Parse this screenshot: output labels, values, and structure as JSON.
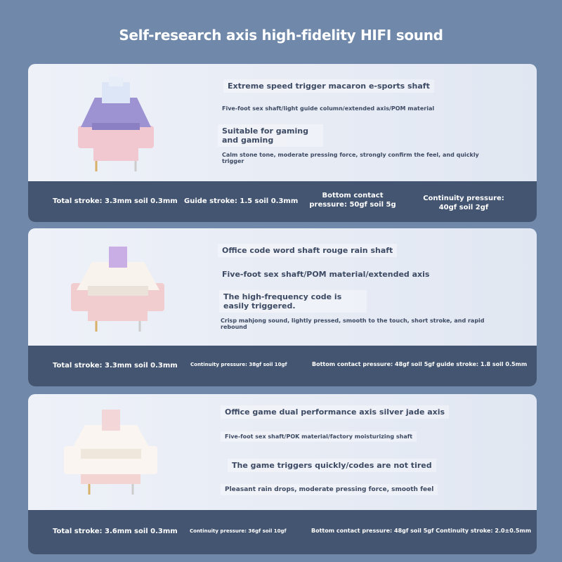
{
  "title": "Self-research axis high-fidelity HIFI sound",
  "cards": [
    {
      "name": "Extreme speed trigger macaron e-sports shaft",
      "sub": "Five-foot sex shaft/light guide column/extended axis/POM material",
      "feature": "Suitable for gaming and gaming",
      "desc": "Calm stone tone, moderate pressing force, strongly confirm the feel, and quickly trigger",
      "specs": [
        "Total stroke: 3.3mm soil 0.3mm",
        "Guide stroke: 1.5 soil 0.3mm",
        "Bottom contact pressure: 50gf soil 5g",
        "Continuity pressure: 40gf soil 2gf"
      ],
      "colors": {
        "stem": "#dce6f6",
        "housing_top": "#9d92d2",
        "housing_bottom": "#f1c8d0"
      }
    },
    {
      "name": "Office code word shaft rouge rain shaft",
      "sub": "Five-foot sex shaft/POM material/extended axis",
      "feature": "The high-frequency code is easily triggered.",
      "desc": "Crisp mahjong sound, lightly pressed, smooth to the touch, short stroke, and rapid rebound",
      "specs": [
        "Total stroke: 3.3mm soil 0.3mm",
        "Continuity pressure: 38gf soil 10gf",
        "Bottom contact pressure: 48gf soil 5gf guide stroke: 1.8 soil 0.5mm"
      ],
      "colors": {
        "stem": "#c9aee6",
        "housing_top": "#f8f3ec",
        "housing_bottom": "#f2cdd0"
      }
    },
    {
      "name": "Office game dual performance axis silver jade axis",
      "sub": "Five-foot sex shaft/POK material/factory moisturizing shaft",
      "feature": "The game triggers quickly/codes are not tired",
      "desc": "Pleasant rain drops, moderate pressing force, smooth feel",
      "specs": [
        "Total stroke: 3.6mm soil 0.3mm",
        "Continuity pressure: 36gf soil 10gf",
        "Bottom contact pressure: 48gf soil 5gf Continuity stroke: 2.0±0.5mm"
      ],
      "colors": {
        "stem": "#f3d7d8",
        "housing_top": "#faf5f0",
        "housing_bottom": "#f4d3d3"
      }
    }
  ]
}
